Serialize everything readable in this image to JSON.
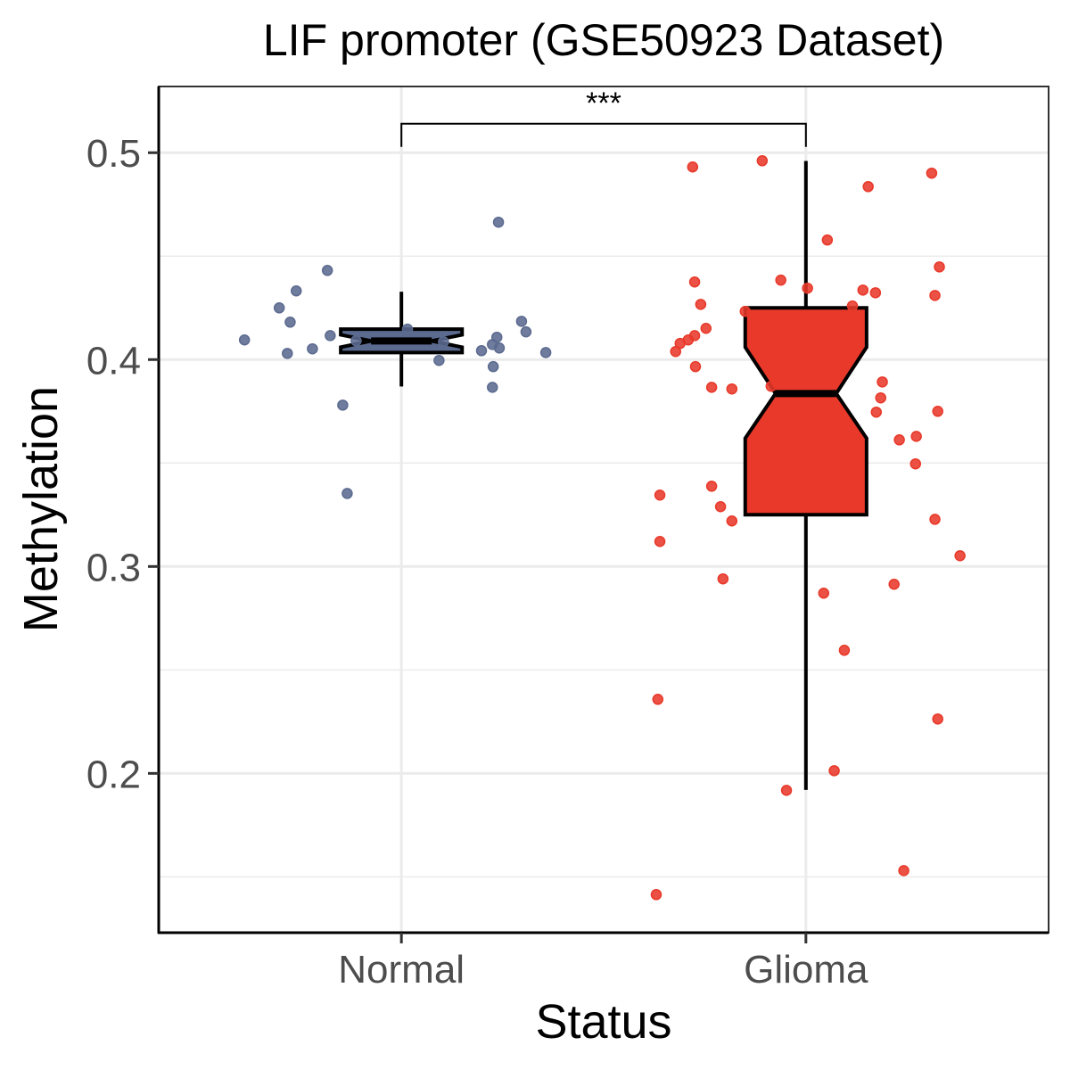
{
  "chart_data": {
    "type": "boxplot",
    "title": "LIF promoter (GSE50923 Dataset)",
    "xlabel": "Status",
    "ylabel": "Methylation",
    "ylim": [
      0.123,
      0.532
    ],
    "y_ticks": [
      0.2,
      0.3,
      0.4,
      0.5
    ],
    "y_tick_labels": [
      "0.2",
      "0.3",
      "0.4",
      "0.5"
    ],
    "categories": [
      "Normal",
      "Glioma"
    ],
    "grid": true,
    "legend": "none",
    "notched": true,
    "significance": {
      "from": "Normal",
      "to": "Glioma",
      "label": "***",
      "y": 0.514
    },
    "series": [
      {
        "name": "Normal",
        "color": "#5b6a8f",
        "box": {
          "whisker_low": 0.387,
          "q1": 0.4034,
          "median": 0.409,
          "q3": 0.4147,
          "whisker_high": 0.4328,
          "notch_low": 0.406,
          "notch_high": 0.412
        },
        "points": [
          {
            "jitter": -0.388,
            "y": 0.4095
          },
          {
            "jitter": -0.282,
            "y": 0.403
          },
          {
            "jitter": -0.22,
            "y": 0.4052
          },
          {
            "jitter": -0.302,
            "y": 0.425
          },
          {
            "jitter": -0.275,
            "y": 0.4181
          },
          {
            "jitter": -0.26,
            "y": 0.4332
          },
          {
            "jitter": -0.183,
            "y": 0.4431
          },
          {
            "jitter": -0.176,
            "y": 0.4116
          },
          {
            "jitter": -0.112,
            "y": 0.4091
          },
          {
            "jitter": -0.145,
            "y": 0.378
          },
          {
            "jitter": -0.134,
            "y": 0.3353
          },
          {
            "jitter": 0.24,
            "y": 0.4664
          },
          {
            "jitter": 0.015,
            "y": 0.4147
          },
          {
            "jitter": 0.104,
            "y": 0.4086
          },
          {
            "jitter": 0.093,
            "y": 0.3996
          },
          {
            "jitter": 0.198,
            "y": 0.4043
          },
          {
            "jitter": 0.225,
            "y": 0.4073
          },
          {
            "jitter": 0.236,
            "y": 0.4108
          },
          {
            "jitter": 0.242,
            "y": 0.4056
          },
          {
            "jitter": 0.297,
            "y": 0.4185
          },
          {
            "jitter": 0.308,
            "y": 0.4134
          },
          {
            "jitter": 0.357,
            "y": 0.4034
          },
          {
            "jitter": 0.227,
            "y": 0.3966
          },
          {
            "jitter": 0.225,
            "y": 0.3866
          }
        ]
      },
      {
        "name": "Glioma",
        "color": "#e8392a",
        "box": {
          "whisker_low": 0.192,
          "q1": 0.325,
          "median": 0.3836,
          "q3": 0.425,
          "whisker_high": 0.496,
          "notch_low": 0.362,
          "notch_high": 0.406
        },
        "points": [
          {
            "jitter": -0.28,
            "y": 0.4931
          },
          {
            "jitter": -0.108,
            "y": 0.4961
          },
          {
            "jitter": -0.275,
            "y": 0.4375
          },
          {
            "jitter": -0.26,
            "y": 0.4267
          },
          {
            "jitter": -0.247,
            "y": 0.4151
          },
          {
            "jitter": -0.275,
            "y": 0.4116
          },
          {
            "jitter": -0.291,
            "y": 0.4095
          },
          {
            "jitter": -0.311,
            "y": 0.4078
          },
          {
            "jitter": -0.322,
            "y": 0.4039
          },
          {
            "jitter": -0.273,
            "y": 0.3966
          },
          {
            "jitter": -0.233,
            "y": 0.3866
          },
          {
            "jitter": -0.183,
            "y": 0.3858
          },
          {
            "jitter": -0.15,
            "y": 0.4233
          },
          {
            "jitter": -0.086,
            "y": 0.3871
          },
          {
            "jitter": -0.361,
            "y": 0.3345
          },
          {
            "jitter": -0.233,
            "y": 0.3388
          },
          {
            "jitter": -0.211,
            "y": 0.3289
          },
          {
            "jitter": -0.183,
            "y": 0.322
          },
          {
            "jitter": -0.361,
            "y": 0.3121
          },
          {
            "jitter": -0.205,
            "y": 0.294
          },
          {
            "jitter": -0.366,
            "y": 0.2358
          },
          {
            "jitter": -0.37,
            "y": 0.1414
          },
          {
            "jitter": -0.048,
            "y": 0.1918
          },
          {
            "jitter": -0.062,
            "y": 0.4384
          },
          {
            "jitter": 0.004,
            "y": 0.4345
          },
          {
            "jitter": 0.053,
            "y": 0.4578
          },
          {
            "jitter": 0.154,
            "y": 0.4836
          },
          {
            "jitter": 0.311,
            "y": 0.4901
          },
          {
            "jitter": 0.33,
            "y": 0.4448
          },
          {
            "jitter": 0.141,
            "y": 0.4336
          },
          {
            "jitter": 0.172,
            "y": 0.4323
          },
          {
            "jitter": 0.319,
            "y": 0.431
          },
          {
            "jitter": 0.115,
            "y": 0.4259
          },
          {
            "jitter": 0.189,
            "y": 0.3892
          },
          {
            "jitter": 0.185,
            "y": 0.3815
          },
          {
            "jitter": 0.174,
            "y": 0.3746
          },
          {
            "jitter": 0.326,
            "y": 0.375
          },
          {
            "jitter": 0.231,
            "y": 0.3612
          },
          {
            "jitter": 0.273,
            "y": 0.3629
          },
          {
            "jitter": 0.271,
            "y": 0.3496
          },
          {
            "jitter": 0.319,
            "y": 0.3228
          },
          {
            "jitter": 0.381,
            "y": 0.3052
          },
          {
            "jitter": 0.218,
            "y": 0.2914
          },
          {
            "jitter": 0.044,
            "y": 0.2871
          },
          {
            "jitter": 0.095,
            "y": 0.2595
          },
          {
            "jitter": 0.07,
            "y": 0.2013
          },
          {
            "jitter": 0.326,
            "y": 0.2263
          },
          {
            "jitter": 0.242,
            "y": 0.153
          }
        ]
      }
    ]
  }
}
